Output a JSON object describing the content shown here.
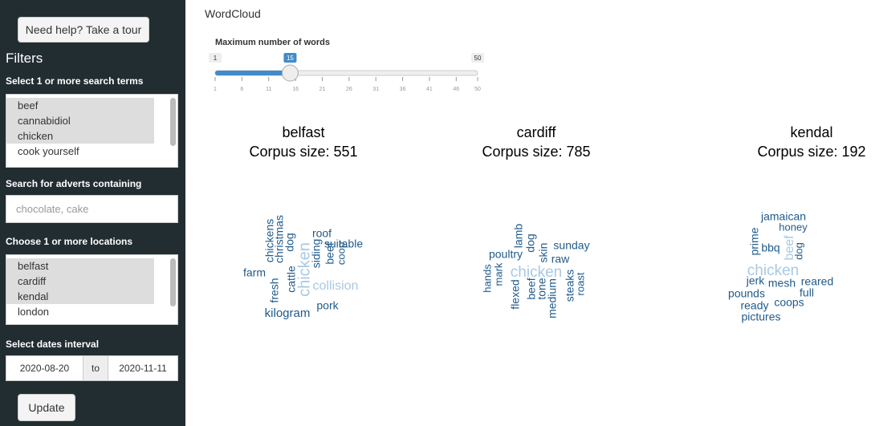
{
  "sidebar": {
    "tour_button": "Need help? Take a tour",
    "title": "Filters",
    "search_terms": {
      "label": "Select 1 or more search terms",
      "options": [
        "beef",
        "cannabidiol",
        "chicken",
        "cook yourself"
      ],
      "selected": [
        true,
        true,
        true,
        false
      ]
    },
    "advert_search": {
      "label": "Search for adverts containing",
      "placeholder": "chocolate, cake"
    },
    "locations": {
      "label": "Choose 1 or more locations",
      "options": [
        "belfast",
        "cardiff",
        "kendal",
        "london"
      ],
      "selected": [
        true,
        true,
        true,
        false
      ]
    },
    "dates": {
      "label": "Select dates interval",
      "start": "2020-08-20",
      "separator": "to",
      "end": "2020-11-11"
    },
    "update_button": "Update"
  },
  "main": {
    "title": "WordCloud",
    "slider": {
      "label": "Maximum number of words",
      "min": 1,
      "max": 50,
      "value": 15,
      "ticks": [
        1,
        6,
        11,
        16,
        21,
        26,
        31,
        36,
        41,
        46,
        50
      ]
    },
    "clouds": [
      {
        "location": "belfast",
        "corpus_label": "Corpus size: 551",
        "words": [
          "chickens",
          "christmas",
          "dog",
          "cattle",
          "fresh",
          "chicken",
          "siding",
          "beef",
          "coop",
          "roof",
          "suitable",
          "farm",
          "collision",
          "pork",
          "kilogram"
        ]
      },
      {
        "location": "cardiff",
        "corpus_label": "Corpus size: 785",
        "words": [
          "lamb",
          "dog",
          "skin",
          "sunday",
          "poultry",
          "raw",
          "hands",
          "mark",
          "chicken",
          "flexed",
          "beef",
          "tone",
          "medium",
          "steaks",
          "roast"
        ]
      },
      {
        "location": "kendal",
        "corpus_label": "Corpus size: 192",
        "words": [
          "jamaican",
          "honey",
          "prime",
          "bbq",
          "beef",
          "dog",
          "chicken",
          "jerk",
          "mesh",
          "reared",
          "pounds",
          "full",
          "coops",
          "ready",
          "pictures"
        ]
      }
    ]
  }
}
